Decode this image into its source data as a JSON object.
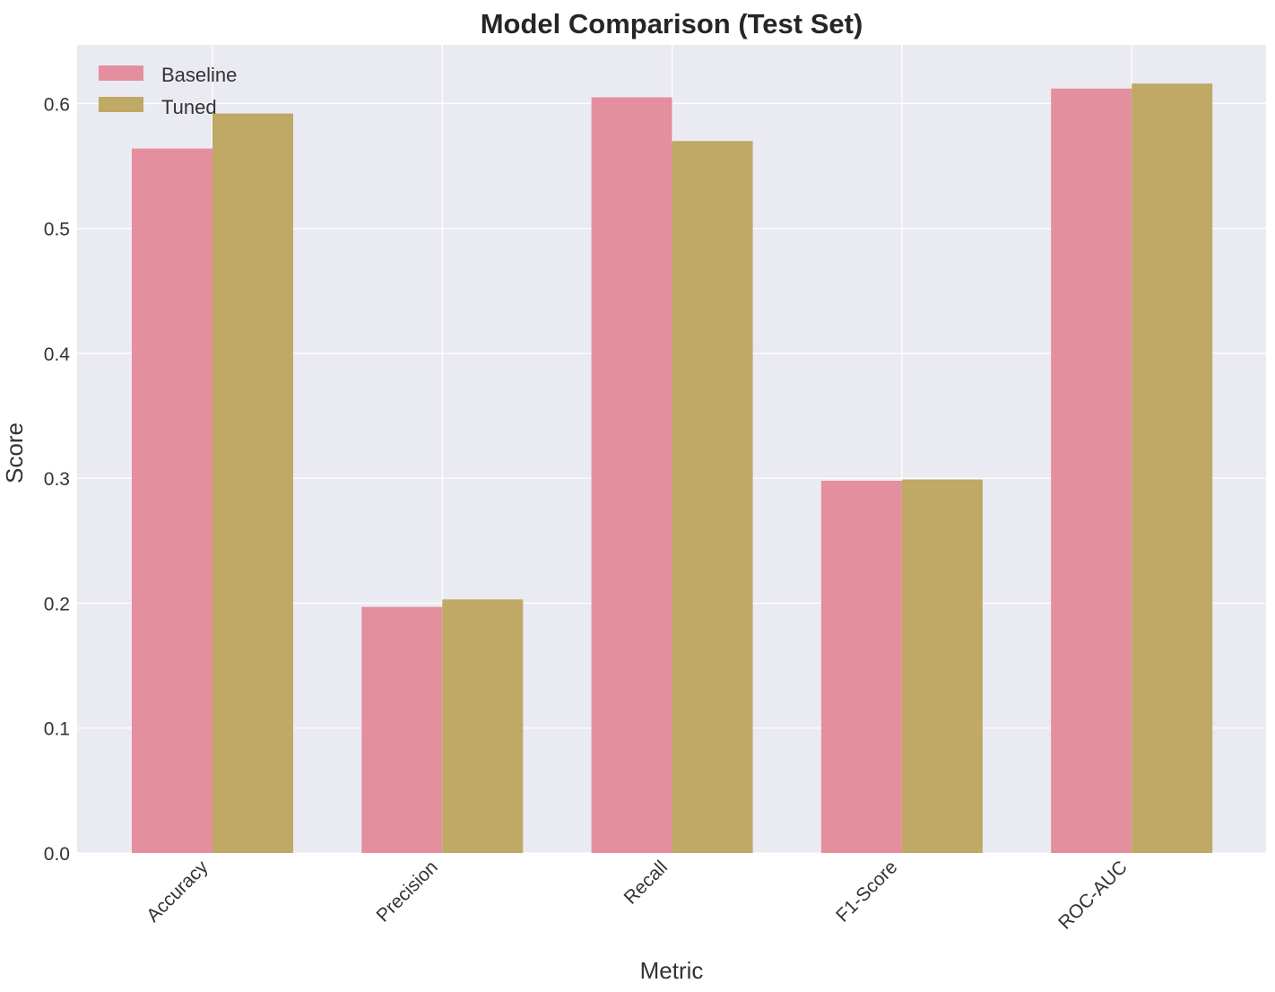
{
  "chart_data": {
    "type": "bar",
    "title": "Model Comparison (Test Set)",
    "xlabel": "Metric",
    "ylabel": "Score",
    "categories": [
      "Accuracy",
      "Precision",
      "Recall",
      "F1-Score",
      "ROC-AUC"
    ],
    "series": [
      {
        "name": "Baseline",
        "color": "#e48f9d",
        "values": [
          0.564,
          0.197,
          0.605,
          0.298,
          0.612
        ]
      },
      {
        "name": "Tuned",
        "color": "#c0a865",
        "values": [
          0.592,
          0.203,
          0.57,
          0.299,
          0.616
        ]
      }
    ],
    "ylim": [
      0,
      0.647
    ],
    "yticks": [
      "0.0",
      "0.1",
      "0.2",
      "0.3",
      "0.4",
      "0.5",
      "0.6"
    ],
    "grid": true,
    "legend": "top-left",
    "background": "#eaeaf2"
  }
}
